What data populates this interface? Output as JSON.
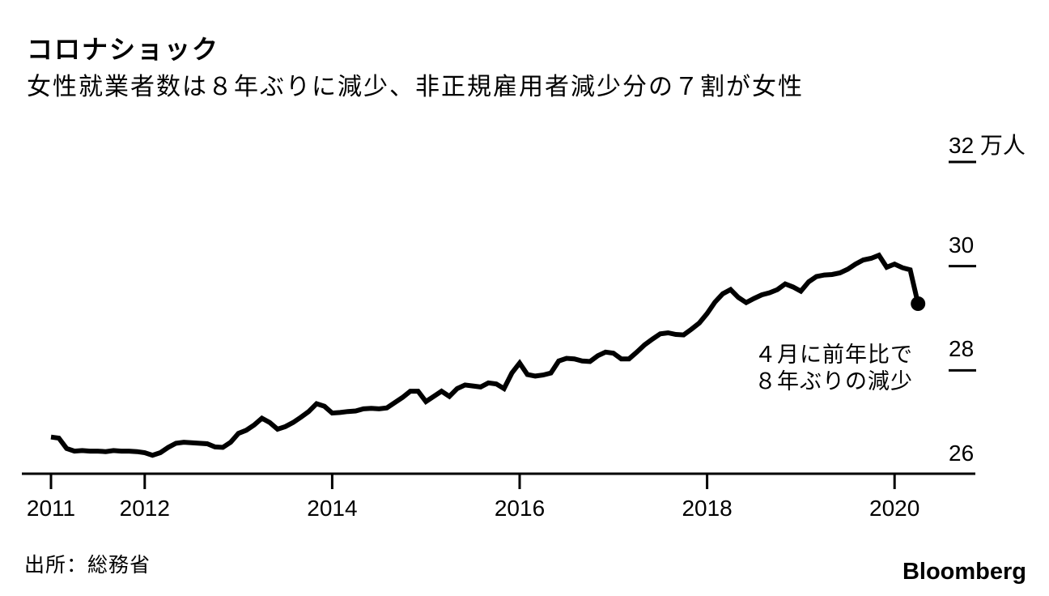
{
  "colors": {
    "background": "#ffffff",
    "line": "#000000",
    "text": "#000000",
    "axis": "#000000"
  },
  "chart_data": {
    "type": "line",
    "title": "コロナショック",
    "subtitle": "女性就業者数は８年ぶりに減少、非正規雇用者減少分の７割が女性",
    "annotation": {
      "lines": [
        "４月に前年比で",
        "８年ぶりの減少"
      ]
    },
    "source": "出所：総務省",
    "brand": "Bloomberg",
    "unit_label": "万人",
    "x_axis": {
      "start": "2011-01",
      "end": "2020-04",
      "freq": "monthly",
      "ticks": [
        {
          "year": 2011,
          "label": "2011"
        },
        {
          "year": 2012,
          "label": "2012"
        },
        {
          "year": 2014,
          "label": "2014"
        },
        {
          "year": 2016,
          "label": "2016"
        },
        {
          "year": 2018,
          "label": "2018"
        },
        {
          "year": 2020,
          "label": "2020"
        }
      ]
    },
    "y_axis": {
      "range": [
        26,
        32.8
      ],
      "ticks": [
        {
          "value": 26,
          "label": "26",
          "dash": false
        },
        {
          "value": 28,
          "label": "28",
          "dash": true
        },
        {
          "value": 30,
          "label": "30",
          "dash": true
        },
        {
          "value": 32,
          "label": "32 万人",
          "dash": true
        }
      ]
    },
    "legend": "none",
    "grid": "off",
    "series": {
      "start": "2011-01",
      "freq": "monthly",
      "last_point_marker": true,
      "values": [
        26.72,
        26.7,
        26.5,
        26.45,
        26.46,
        26.45,
        26.45,
        26.44,
        26.46,
        26.45,
        26.45,
        26.44,
        26.42,
        26.37,
        26.42,
        26.52,
        26.6,
        26.62,
        26.61,
        26.6,
        26.59,
        26.53,
        26.52,
        26.62,
        26.79,
        26.85,
        26.95,
        27.08,
        27.0,
        26.87,
        26.92,
        27.0,
        27.1,
        27.21,
        27.36,
        27.31,
        27.18,
        27.19,
        27.21,
        27.22,
        27.26,
        27.27,
        27.26,
        27.28,
        27.38,
        27.48,
        27.6,
        27.6,
        27.4,
        27.5,
        27.6,
        27.5,
        27.65,
        27.72,
        27.7,
        27.68,
        27.76,
        27.74,
        27.65,
        27.95,
        28.14,
        27.92,
        27.89,
        27.91,
        27.95,
        28.18,
        28.23,
        28.22,
        28.18,
        28.17,
        28.28,
        28.35,
        28.33,
        28.22,
        28.22,
        28.35,
        28.49,
        28.6,
        28.7,
        28.72,
        28.69,
        28.68,
        28.79,
        28.91,
        29.09,
        29.31,
        29.47,
        29.55,
        29.4,
        29.3,
        29.38,
        29.45,
        29.49,
        29.55,
        29.66,
        29.6,
        29.52,
        29.7,
        29.8,
        29.83,
        29.84,
        29.87,
        29.94,
        30.04,
        30.12,
        30.15,
        30.21,
        29.98,
        30.04,
        29.97,
        29.93,
        29.28
      ]
    }
  }
}
